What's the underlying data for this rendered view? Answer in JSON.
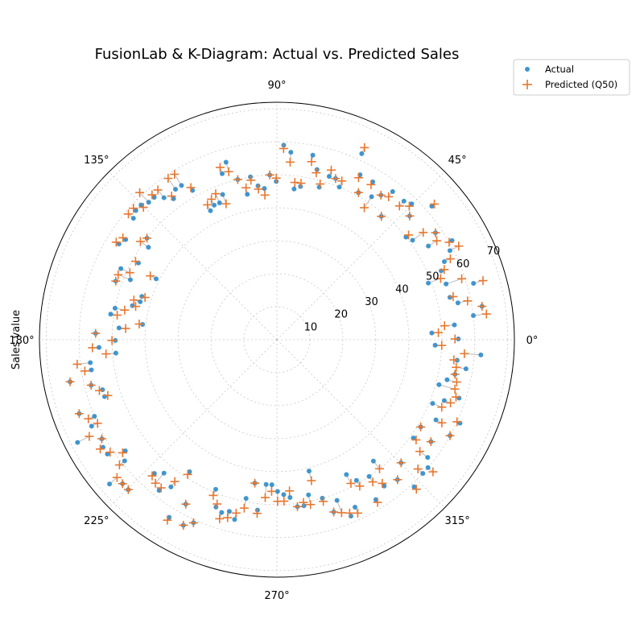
{
  "chart_data": {
    "type": "scatter",
    "projection": "polar",
    "title": "FusionLab & K-Diagram: Actual vs. Predicted Sales",
    "ylabel": "Sales value",
    "theta_ticks": [
      "0°",
      "45°",
      "90°",
      "135°",
      "180°",
      "225°",
      "270°",
      "315°"
    ],
    "r_ticks": [
      10,
      20,
      30,
      40,
      50,
      60,
      70
    ],
    "r_max": 72,
    "grid": true,
    "legend_position": "top-right",
    "series": [
      {
        "name": "Actual",
        "marker": "dot",
        "color": "#2e8bc9"
      },
      {
        "name": "Predicted (Q50)",
        "marker": "plus",
        "color": "#e8772e"
      }
    ],
    "points_count": 160,
    "angle_start_deg": 7,
    "angle_step_deg": 2.25,
    "actual": [
      60,
      63,
      56,
      54,
      62,
      54,
      49,
      54,
      56,
      59,
      61,
      54,
      58,
      51,
      50,
      62,
      55,
      58,
      57,
      49,
      57,
      54,
      52,
      56,
      51,
      56,
      62,
      50,
      52,
      52,
      48,
      53,
      57,
      47,
      46,
      57,
      59,
      48,
      50,
      46,
      47,
      50,
      45,
      50,
      56,
      53,
      47,
      45,
      45,
      44,
      52,
      55,
      55,
      53,
      55,
      57,
      57,
      58,
      58,
      57,
      50,
      48,
      55,
      56,
      48,
      41,
      52,
      48,
      52,
      43,
      43,
      45,
      50,
      51,
      41,
      48,
      55,
      49,
      54,
      49,
      57,
      57,
      64,
      58,
      55,
      55,
      64,
      60,
      62,
      68,
      61,
      62,
      62,
      57,
      59,
      67,
      64,
      64,
      55,
      53,
      58,
      55,
      48,
      63,
      57,
      63,
      61,
      49,
      54,
      55,
      54,
      56,
      49,
      44,
      52,
      44,
      44,
      46,
      47,
      48,
      51,
      51,
      48,
      41,
      50,
      55,
      52,
      58,
      56,
      46,
      49,
      57,
      50,
      55,
      47,
      56,
      61,
      53,
      60,
      60,
      58,
      51,
      56,
      51,
      60,
      54,
      61,
      51,
      54,
      58,
      51,
      53,
      55,
      58,
      55,
      62,
      48,
      55,
      47,
      54
    ],
    "predicted": [
      64,
      63,
      59,
      55,
      65,
      59,
      53,
      55,
      58,
      62,
      60,
      57,
      58,
      55,
      51,
      63,
      55,
      57,
      55,
      49,
      55,
      54,
      48,
      55,
      51,
      55,
      64,
      52,
      52,
      54,
      49,
      52,
      55,
      48,
      48,
      54,
      58,
      49,
      50,
      44,
      46,
      49,
      47,
      50,
      53,
      55,
      44,
      48,
      47,
      46,
      53,
      59,
      59,
      54,
      58,
      58,
      61,
      57,
      59,
      59,
      50,
      51,
      56,
      57,
      49,
      43,
      49,
      52,
      52,
      42,
      45,
      44,
      47,
      49,
      42,
      46,
      55,
      50,
      56,
      52,
      61,
      59,
      64,
      58,
      56,
      54,
      64,
      62,
      60,
      64,
      61,
      63,
      61,
      58,
      61,
      64,
      64,
      64,
      56,
      57,
      57,
      53,
      49,
      64,
      57,
      63,
      61,
      51,
      53,
      57,
      56,
      54,
      52,
      44,
      53,
      48,
      46,
      49,
      49,
      46,
      51,
      50,
      51,
      44,
      51,
      55,
      56,
      57,
      58,
      49,
      51,
      58,
      52,
      54,
      50,
      56,
      62,
      53,
      58,
      62,
      55,
      52,
      56,
      51,
      60,
      56,
      60,
      54,
      56,
      57,
      56,
      56,
      55,
      55,
      54,
      57,
      50,
      54,
      49,
      51
    ]
  },
  "legend": {
    "actual_label": "Actual",
    "predicted_label": "Predicted (Q50)"
  }
}
